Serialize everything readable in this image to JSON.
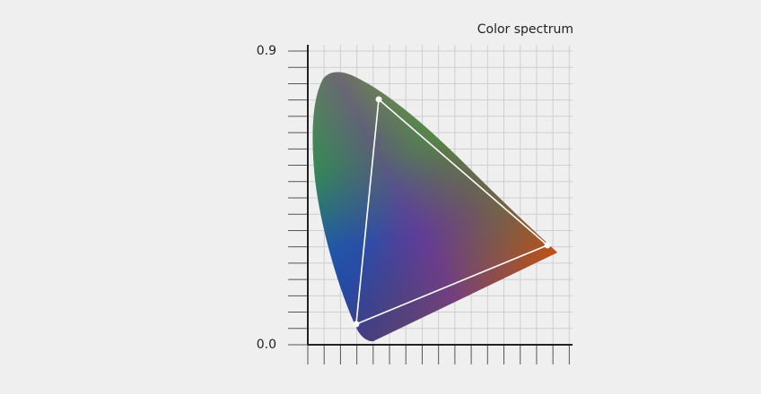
{
  "chart_data": {
    "type": "scatter",
    "title": "Color spectrum",
    "x": [
      0.148,
      0.217,
      0.733
    ],
    "values": [
      0.063,
      0.752,
      0.305
    ],
    "color": "#ffffff",
    "xlim": [
      0,
      0.81
    ],
    "ylim": [
      0,
      0.9
    ],
    "xticks": [
      0,
      0.05,
      0.1,
      0.15,
      0.2,
      0.25,
      0.3,
      0.35,
      0.4,
      0.45,
      0.5,
      0.55,
      0.6,
      0.65,
      0.7,
      0.75,
      0.8
    ],
    "yticks": [
      {
        "value": 0,
        "label": "0.0"
      },
      0.9
    ],
    "minor_yticks": [
      0.05,
      0.1,
      0.15,
      0.2,
      0.25,
      0.3,
      0.35,
      0.4,
      0.45,
      0.5,
      0.55,
      0.6,
      0.65,
      0.7,
      0.75,
      0.8,
      0.85
    ],
    "grid": true
  }
}
